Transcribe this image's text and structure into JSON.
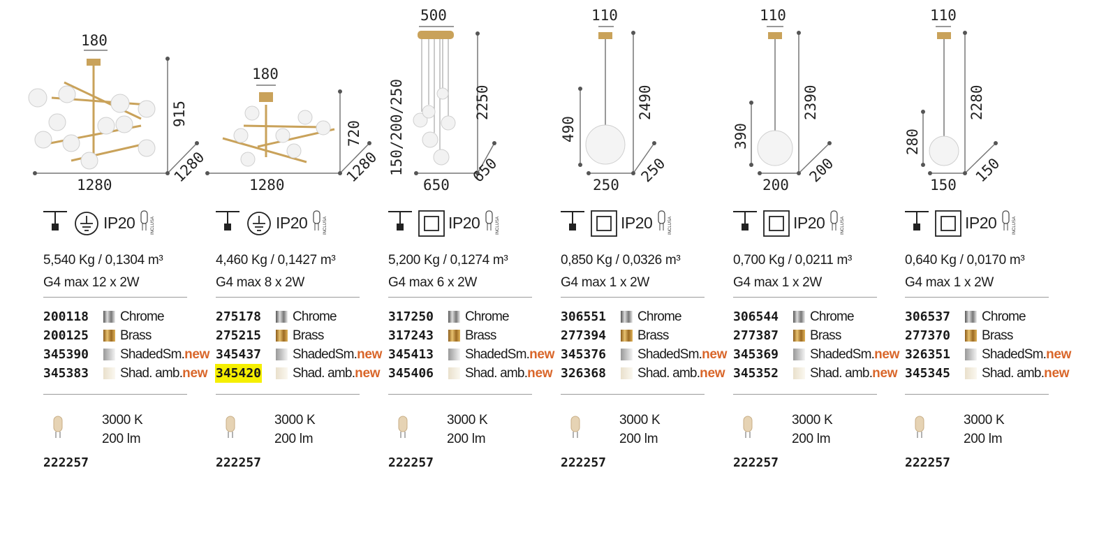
{
  "products": [
    {
      "dims": {
        "top": "180",
        "height": "915",
        "width": "1280",
        "depth": "1280"
      },
      "ip": "IP20",
      "bulb_included": "INCLUSA",
      "weight": "5,540 Kg / 0,1304 m³",
      "lamp": "G4 max 12 x 2W",
      "variants": [
        {
          "code": "200118",
          "name": "Chrome",
          "new": ""
        },
        {
          "code": "200125",
          "name": "Brass",
          "new": ""
        },
        {
          "code": "345390",
          "name": "ShadedSm.",
          "new": "new"
        },
        {
          "code": "345383",
          "name": "Shad. amb.",
          "new": "new"
        }
      ],
      "bulb": {
        "kelvin": "3000 K",
        "lumen": "200 lm",
        "code": "222257"
      }
    },
    {
      "dims": {
        "top": "180",
        "height": "720",
        "width": "1280",
        "depth": "1280"
      },
      "ip": "IP20",
      "bulb_included": "INCLUSA",
      "weight": "4,460 Kg / 0,1427 m³",
      "lamp": "G4 max 8 x 2W",
      "variants": [
        {
          "code": "275178",
          "name": "Chrome",
          "new": ""
        },
        {
          "code": "275215",
          "name": "Brass",
          "new": ""
        },
        {
          "code": "345437",
          "name": "ShadedSm.",
          "new": "new"
        },
        {
          "code": "345420",
          "name": "Shad. amb.",
          "new": "new"
        }
      ],
      "bulb": {
        "kelvin": "3000 K",
        "lumen": "200 lm",
        "code": "222257"
      }
    },
    {
      "dims": {
        "top": "500",
        "height": "2250",
        "drop": "150/200/250",
        "width": "650",
        "depth": "650"
      },
      "ip": "IP20",
      "bulb_included": "INCLUSA",
      "weight": "5,200 Kg / 0,1274 m³",
      "lamp": "G4 max 6 x 2W",
      "variants": [
        {
          "code": "317250",
          "name": "Chrome",
          "new": ""
        },
        {
          "code": "317243",
          "name": "Brass",
          "new": ""
        },
        {
          "code": "345413",
          "name": "ShadedSm.",
          "new": "new"
        },
        {
          "code": "345406",
          "name": "Shad. amb.",
          "new": "new"
        }
      ],
      "bulb": {
        "kelvin": "3000 K",
        "lumen": "200 lm",
        "code": "222257"
      }
    },
    {
      "dims": {
        "top": "110",
        "height": "2490",
        "drop": "490",
        "width": "250",
        "depth": "250"
      },
      "ip": "IP20",
      "bulb_included": "INCLUSA",
      "weight": "0,850 Kg / 0,0326 m³",
      "lamp": "G4 max 1 x 2W",
      "variants": [
        {
          "code": "306551",
          "name": "Chrome",
          "new": ""
        },
        {
          "code": "277394",
          "name": "Brass",
          "new": ""
        },
        {
          "code": "345376",
          "name": "ShadedSm.",
          "new": "new"
        },
        {
          "code": "326368",
          "name": "Shad. amb.",
          "new": "new"
        }
      ],
      "bulb": {
        "kelvin": "3000 K",
        "lumen": "200 lm",
        "code": "222257"
      }
    },
    {
      "dims": {
        "top": "110",
        "height": "2390",
        "drop": "390",
        "width": "200",
        "depth": "200"
      },
      "ip": "IP20",
      "bulb_included": "INCLUSA",
      "weight": "0,700 Kg / 0,0211 m³",
      "lamp": "G4 max 1 x 2W",
      "variants": [
        {
          "code": "306544",
          "name": "Chrome",
          "new": ""
        },
        {
          "code": "277387",
          "name": "Brass",
          "new": ""
        },
        {
          "code": "345369",
          "name": "ShadedSm.",
          "new": "new"
        },
        {
          "code": "345352",
          "name": "Shad. amb.",
          "new": "new"
        }
      ],
      "bulb": {
        "kelvin": "3000 K",
        "lumen": "200 lm",
        "code": "222257"
      }
    },
    {
      "dims": {
        "top": "110",
        "height": "2280",
        "drop": "280",
        "width": "150",
        "depth": "150"
      },
      "ip": "IP20",
      "bulb_included": "INCLUSA",
      "weight": "0,640 Kg / 0,0170 m³",
      "lamp": "G4 max 1 x 2W",
      "variants": [
        {
          "code": "306537",
          "name": "Chrome",
          "new": ""
        },
        {
          "code": "277370",
          "name": "Brass",
          "new": ""
        },
        {
          "code": "326351",
          "name": "ShadedSm.",
          "new": "new"
        },
        {
          "code": "345345",
          "name": "Shad. amb.",
          "new": "new"
        }
      ],
      "bulb": {
        "kelvin": "3000 K",
        "lumen": "200 lm",
        "code": "222257"
      }
    }
  ],
  "highlighted_code": "345420",
  "colors": {
    "new": "#d9662a",
    "highlight": "#f5ef00",
    "brass": "#c9a25a"
  },
  "icons": [
    "suspension-icon",
    "earth-class-i-icon",
    "double-insulation-class-ii-icon",
    "bulb-included-icon"
  ]
}
